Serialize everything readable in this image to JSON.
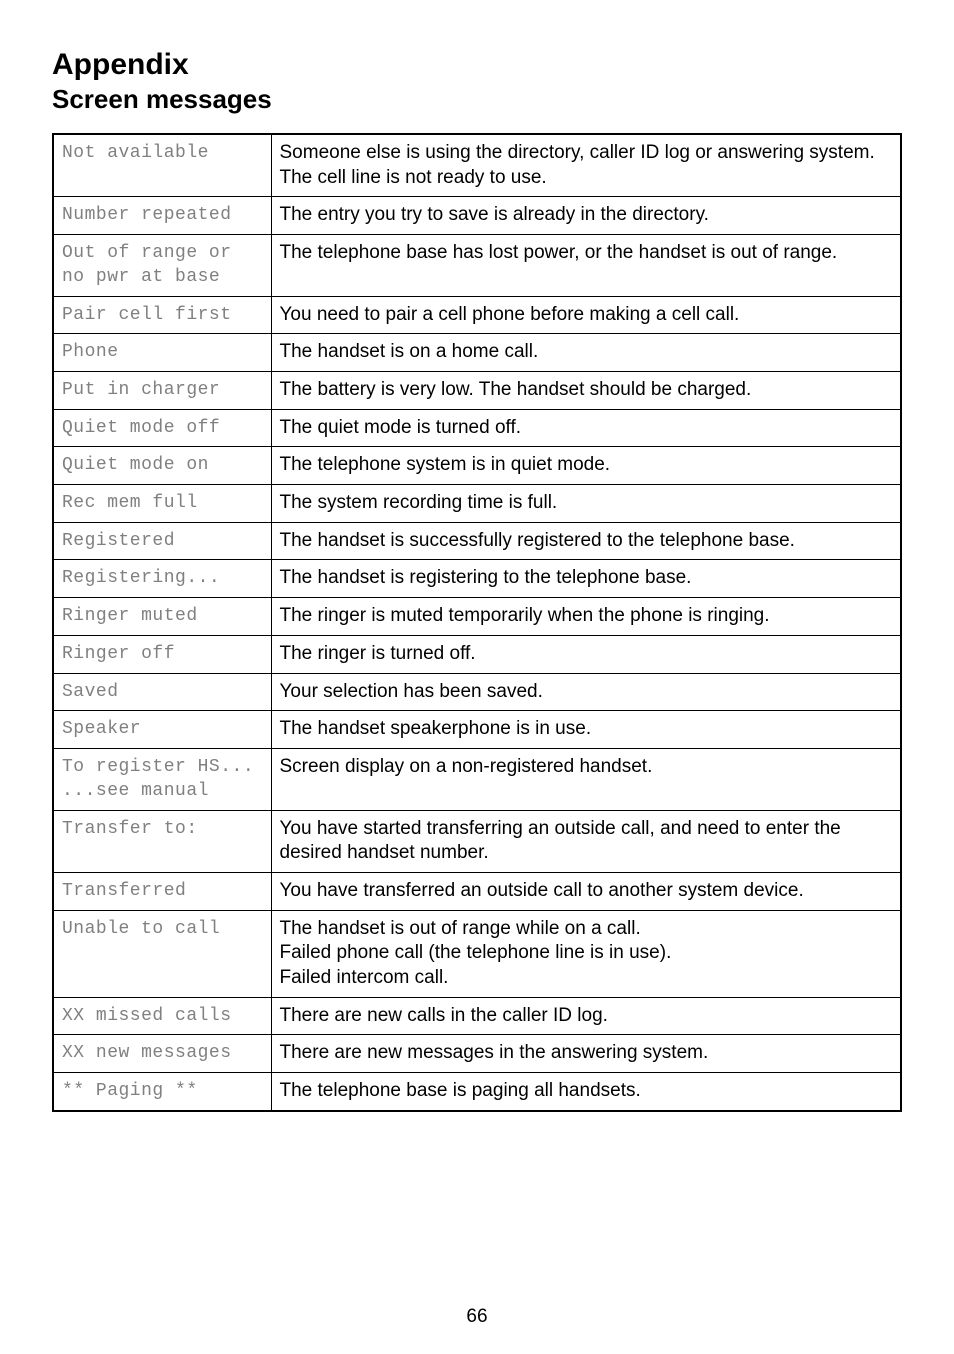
{
  "header": {
    "title": "Appendix",
    "subtitle": "Screen messages"
  },
  "rows": [
    {
      "screen": "Not available",
      "desc": "Someone else is using the directory, caller ID log or answering system.\nThe cell line is not ready to use."
    },
    {
      "screen": "Number repeated",
      "desc": "The entry you try to save is already in the directory."
    },
    {
      "screen": "Out of range or\nno pwr at base",
      "desc": "The telephone base has lost power, or the handset is out of range."
    },
    {
      "screen": "Pair cell first",
      "desc": "You need to pair a cell phone before making a cell call."
    },
    {
      "screen": "Phone",
      "desc": "The handset is on a home call."
    },
    {
      "screen": "Put in charger",
      "desc": "The battery is very low. The handset should be charged."
    },
    {
      "screen": "Quiet mode off",
      "desc": "The quiet mode is turned off."
    },
    {
      "screen": "Quiet mode on",
      "desc": "The telephone system is in quiet mode."
    },
    {
      "screen": "Rec mem full",
      "desc": "The system recording time is full."
    },
    {
      "screen": "Registered",
      "desc": "The handset is successfully registered to the telephone base."
    },
    {
      "screen": "Registering...",
      "desc": "The handset is registering to the telephone base."
    },
    {
      "screen": "Ringer muted",
      "desc": "The ringer is muted temporarily when the phone is ringing."
    },
    {
      "screen": "Ringer off",
      "desc": "The ringer is turned off."
    },
    {
      "screen": "Saved",
      "desc": "Your selection has been saved."
    },
    {
      "screen": "Speaker",
      "desc": "The handset speakerphone is in use."
    },
    {
      "screen": "To register HS...\n...see manual",
      "desc": "Screen display on a non-registered handset."
    },
    {
      "screen": "Transfer to:",
      "desc": "You have started transferring an outside call, and need to enter the desired handset number."
    },
    {
      "screen": "Transferred",
      "desc": "You have transferred an outside call to another system device."
    },
    {
      "screen": "Unable to call",
      "desc": "The handset is out of range while on a call.\nFailed phone call (the telephone line is in use).\nFailed intercom call."
    },
    {
      "screen": "XX missed calls",
      "desc": "There are new calls in the caller ID log."
    },
    {
      "screen": "XX new messages",
      "desc": "There are new messages in the answering system."
    },
    {
      "screen": "** Paging **",
      "desc": "The telephone base is paging all handsets."
    }
  ],
  "page_number": "66",
  "colors": {
    "text": "#000000",
    "lcd_text": "#808080",
    "border": "#000000",
    "background": "#ffffff"
  },
  "fonts": {
    "body": "Arial, Helvetica, sans-serif",
    "lcd": "Courier New, monospace",
    "title_size": 30,
    "subtitle_size": 26,
    "body_size": 19,
    "lcd_size": 18
  }
}
